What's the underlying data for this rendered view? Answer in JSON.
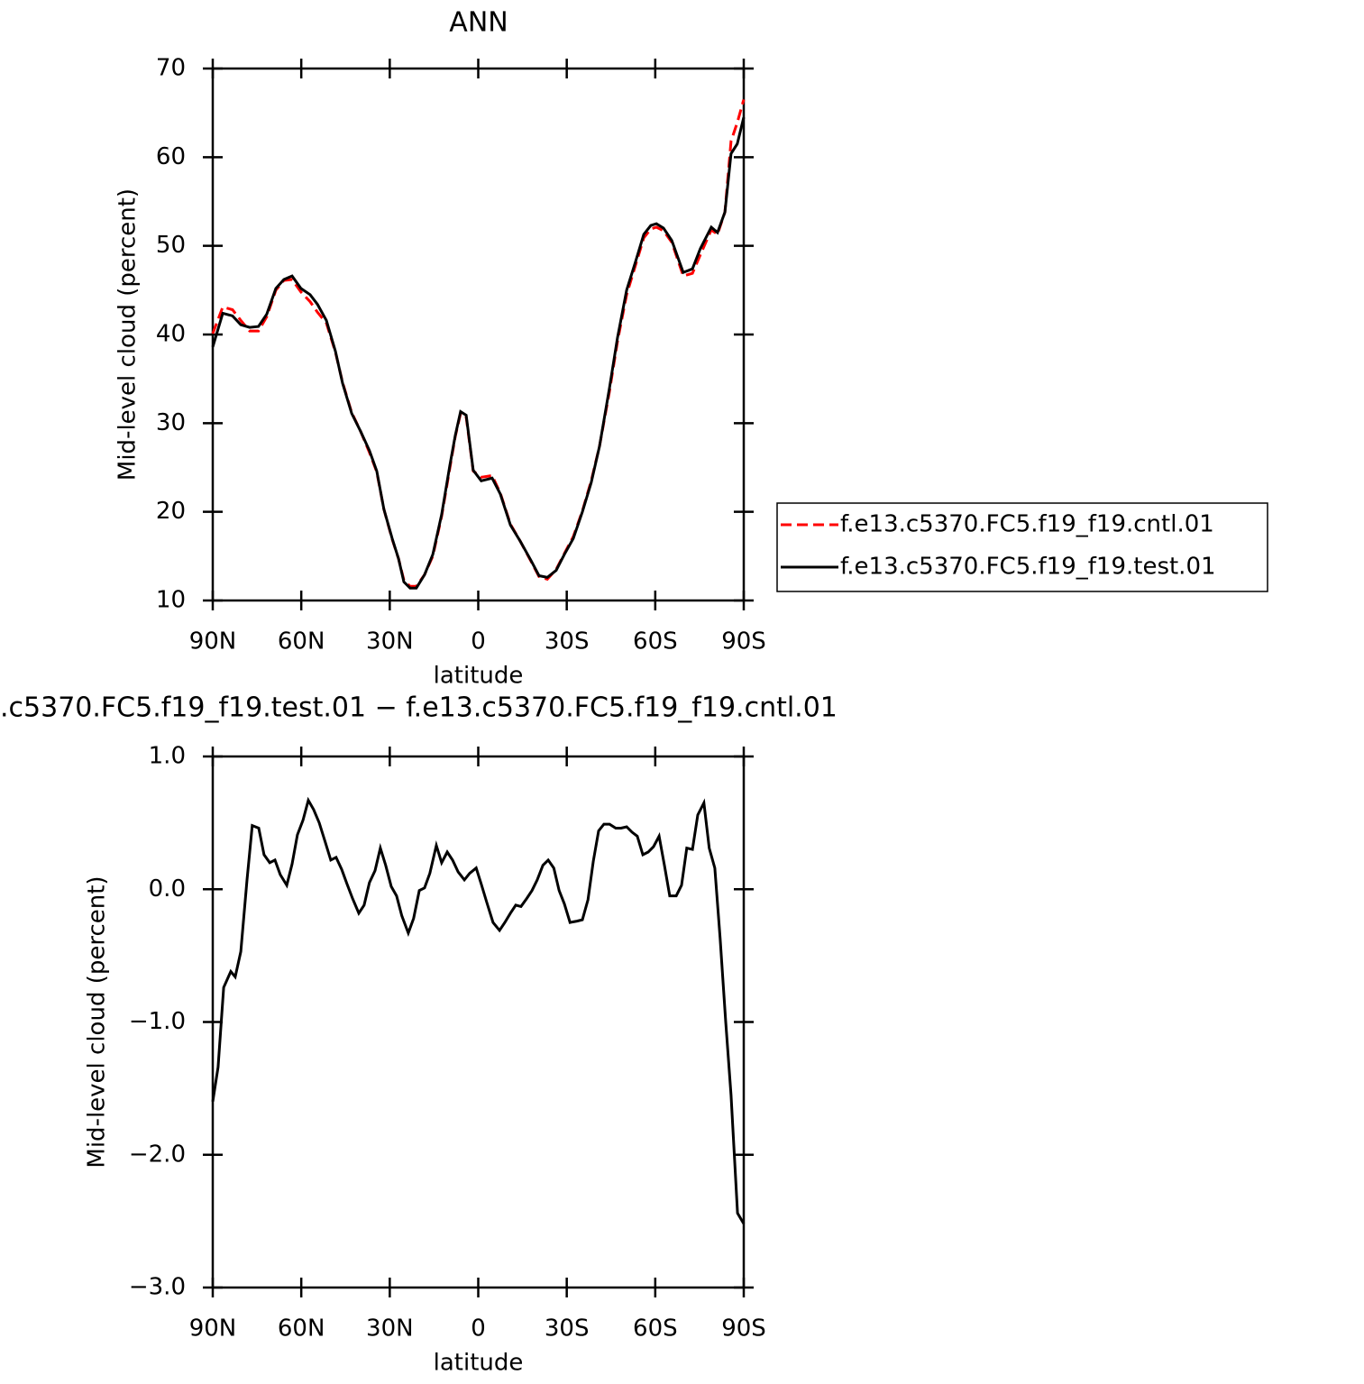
{
  "chart_data": [
    {
      "type": "line",
      "title": "ANN",
      "xlabel": "latitude",
      "ylabel": "Mid-level cloud (percent)",
      "xlim": [
        90,
        -90
      ],
      "xticks": [
        {
          "value": 90,
          "label": "90N"
        },
        {
          "value": 60,
          "label": "60N"
        },
        {
          "value": 30,
          "label": "30N"
        },
        0,
        {
          "value": -30,
          "label": "30S"
        },
        {
          "value": -60,
          "label": "60S"
        },
        {
          "value": -90,
          "label": "90S"
        }
      ],
      "ylim": [
        10,
        70
      ],
      "yticks": [
        10,
        20,
        30,
        40,
        50,
        60,
        70
      ],
      "legend": "right",
      "x": [
        90,
        86.6,
        83.3,
        80.5,
        77.5,
        74.5,
        71.7,
        68.6,
        65.9,
        63.1,
        60.1,
        57,
        54.5,
        51.5,
        48.4,
        46,
        42.9,
        39.9,
        36.9,
        34.4,
        32,
        29.2,
        27,
        25.2,
        23.1,
        21,
        18.2,
        15.4,
        12.4,
        9.6,
        7.8,
        6,
        4.1,
        1.7,
        -1,
        -4.7,
        -7.5,
        -10.9,
        -14.2,
        -17.9,
        -20.6,
        -23.4,
        -26.4,
        -29.2,
        -32.2,
        -35.3,
        -38.3,
        -41.1,
        -44.5,
        -47.2,
        -50.3,
        -53.3,
        -56.1,
        -58.5,
        -60.4,
        -62.8,
        -65.6,
        -69.5,
        -72.6,
        -75.3,
        -79,
        -81.1,
        -83.6,
        -85.7,
        -87.8,
        -90
      ],
      "series": [
        {
          "name": "f.e13.c5370.FC5.f19_f19.cntl.01",
          "color": "#ff0000",
          "line_style": "dashed",
          "values": [
            40.1,
            43.1,
            42.8,
            41.6,
            40.4,
            40.4,
            42.0,
            45.0,
            46.1,
            46.2,
            44.8,
            43.7,
            42.5,
            41.3,
            38.0,
            34.6,
            31.2,
            29.1,
            26.7,
            24.5,
            20.3,
            16.9,
            14.7,
            12.3,
            11.6,
            11.6,
            12.9,
            15.0,
            19.5,
            25.0,
            28.5,
            31.1,
            30.7,
            24.6,
            23.9,
            24.1,
            22.1,
            18.6,
            16.7,
            14.4,
            12.7,
            12.4,
            13.5,
            15.3,
            17.2,
            20.1,
            23.5,
            27.4,
            33.6,
            39.2,
            44.5,
            47.8,
            50.9,
            51.9,
            52.1,
            51.7,
            50.4,
            46.6,
            46.9,
            49.0,
            51.8,
            51.3,
            53.8,
            61.8,
            63.9,
            66.5
          ]
        },
        {
          "name": "f.e13.c5370.FC5.f19_f19.test.01",
          "color": "#000000",
          "line_style": "solid",
          "values": [
            38.6,
            42.4,
            42.1,
            41.1,
            40.8,
            40.9,
            42.3,
            45.2,
            46.2,
            46.6,
            45.2,
            44.5,
            43.4,
            41.6,
            38.1,
            34.5,
            31.1,
            29.1,
            26.9,
            24.6,
            20.3,
            17.0,
            14.7,
            12.1,
            11.4,
            11.4,
            12.9,
            15.2,
            19.7,
            25.3,
            28.6,
            31.3,
            30.9,
            24.7,
            23.5,
            23.8,
            22.0,
            18.5,
            16.7,
            14.5,
            12.8,
            12.6,
            13.4,
            15.2,
            17.0,
            20.0,
            23.3,
            27.4,
            34.0,
            39.6,
            45.0,
            48.2,
            51.3,
            52.3,
            52.5,
            52.0,
            50.6,
            47.0,
            47.4,
            49.7,
            52.1,
            51.5,
            53.8,
            60.4,
            61.5,
            64.5
          ]
        }
      ]
    },
    {
      "type": "line",
      "title": ".c5370.FC5.f19_f19.test.01 − f.e13.c5370.FC5.f19_f19.cntl.01",
      "xlabel": "latitude",
      "ylabel": "Mid-level cloud (percent)",
      "xlim": [
        90,
        -90
      ],
      "xticks": [
        {
          "value": 90,
          "label": "90N"
        },
        {
          "value": 60,
          "label": "60N"
        },
        {
          "value": 30,
          "label": "30N"
        },
        0,
        {
          "value": -30,
          "label": "30S"
        },
        {
          "value": -60,
          "label": "60S"
        },
        {
          "value": -90,
          "label": "90S"
        }
      ],
      "ylim": [
        -3,
        1
      ],
      "yticks": [
        {
          "value": -3,
          "label": "−3.0"
        },
        {
          "value": -2,
          "label": "−2.0"
        },
        {
          "value": -1,
          "label": "−1.0"
        },
        {
          "value": 0,
          "label": "0.0"
        },
        {
          "value": 1,
          "label": "1.0"
        }
      ],
      "color": "#000000",
      "x": [
        90,
        88.2,
        86.3,
        83.9,
        82.4,
        80.5,
        78.4,
        76.6,
        74.4,
        72.6,
        70.7,
        68.9,
        67.1,
        64.9,
        63.1,
        61.3,
        59.4,
        57.6,
        55.8,
        53.9,
        51.8,
        50,
        48.2,
        46.3,
        44.5,
        42.6,
        40.5,
        38.7,
        36.9,
        35,
        33.2,
        31.4,
        29.5,
        27.7,
        25.9,
        23.7,
        21.9,
        20,
        18.2,
        16.4,
        14.2,
        12.4,
        10.5,
        8.7,
        6.8,
        4.7,
        2.9,
        0.7,
        -1,
        -2.9,
        -5,
        -7.2,
        -9,
        -10.9,
        -12.7,
        -14.5,
        -16.4,
        -18.2,
        -20,
        -21.9,
        -23.7,
        -25.6,
        -27.4,
        -29.2,
        -31.1,
        -33.5,
        -35.3,
        -37.2,
        -39,
        -40.8,
        -42.6,
        -44.5,
        -46.6,
        -48.4,
        -50.3,
        -52.1,
        -53.9,
        -55.8,
        -57.6,
        -59.4,
        -61.3,
        -63.1,
        -64.9,
        -67.1,
        -68.9,
        -70.7,
        -72.6,
        -74.4,
        -76.5,
        -78.3,
        -80.2,
        -82,
        -83.9,
        -85.7,
        -87.9,
        -90
      ],
      "values": [
        -1.6,
        -1.34,
        -0.74,
        -0.62,
        -0.66,
        -0.47,
        0.07,
        0.48,
        0.46,
        0.26,
        0.2,
        0.22,
        0.11,
        0.03,
        0.19,
        0.41,
        0.52,
        0.67,
        0.6,
        0.5,
        0.35,
        0.22,
        0.24,
        0.15,
        0.04,
        -0.07,
        -0.18,
        -0.12,
        0.05,
        0.14,
        0.31,
        0.18,
        0.02,
        -0.05,
        -0.2,
        -0.33,
        -0.22,
        -0.01,
        0.01,
        0.12,
        0.33,
        0.2,
        0.28,
        0.22,
        0.13,
        0.07,
        0.12,
        0.16,
        0.04,
        -0.1,
        -0.25,
        -0.31,
        -0.25,
        -0.18,
        -0.12,
        -0.13,
        -0.07,
        -0.01,
        0.07,
        0.18,
        0.22,
        0.16,
        -0.01,
        -0.11,
        -0.25,
        -0.24,
        -0.23,
        -0.08,
        0.21,
        0.44,
        0.49,
        0.49,
        0.46,
        0.46,
        0.47,
        0.43,
        0.4,
        0.26,
        0.28,
        0.32,
        0.4,
        0.18,
        -0.05,
        -0.05,
        0.03,
        0.31,
        0.3,
        0.56,
        0.65,
        0.31,
        0.16,
        -0.37,
        -1.0,
        -1.55,
        -2.44,
        -2.52
      ]
    }
  ]
}
